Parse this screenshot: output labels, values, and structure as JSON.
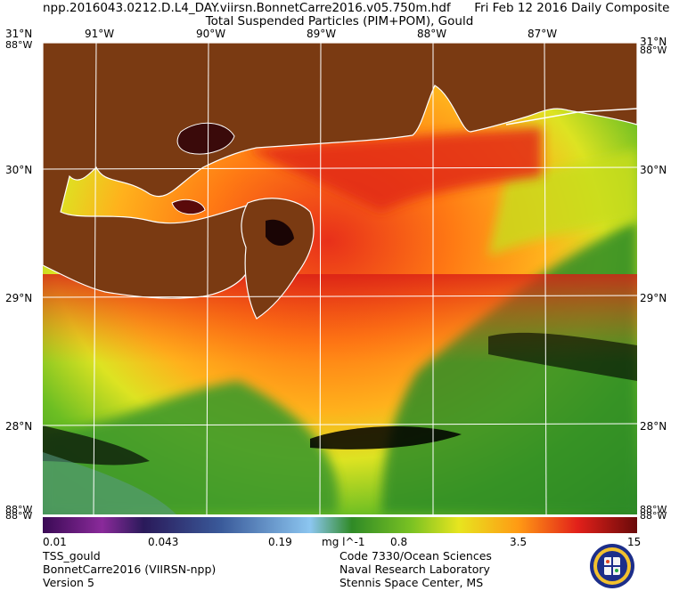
{
  "header": {
    "filename": "npp.2016043.0212.D.L4_DAY.viirsn.BonnetCarre2016.v05.750m.hdf",
    "date": "Fri Feb 12 2016 Daily Composite",
    "product": "Total Suspended Particles (PIM+POM), Gould"
  },
  "map": {
    "lat_labels": [
      "31°N",
      "30°N",
      "29°N",
      "28°N"
    ],
    "lat_labels_right": [
      "31°N",
      "30°N",
      "29°N",
      "28°N"
    ],
    "lon_labels": [
      "91°W",
      "90°W",
      "89°W",
      "88°W",
      "87°W"
    ],
    "corner_labels": {
      "tl": "88°W",
      "tr": "88°W",
      "bl": "88°W",
      "br": "88°W",
      "bl2": "88°W",
      "br2": "88°W"
    },
    "colors": {
      "land": "#7a3a12",
      "grid": "#ffffff",
      "coast": "#ffffff",
      "nodata": "#000000"
    }
  },
  "colorbar": {
    "ticks": [
      "0.01",
      "0.043",
      "0.19",
      "0.8",
      "3.5",
      "15"
    ],
    "unit": "mg l^-1"
  },
  "footer": {
    "left": [
      "TSS_gould",
      "BonnetCarre2016 (VIIRSN-npp)",
      "Version 5"
    ],
    "right": [
      "Code 7330/Ocean Sciences",
      "Naval Research Laboratory",
      "Stennis Space Center, MS"
    ]
  },
  "seal": {
    "name": "navy-seal"
  }
}
